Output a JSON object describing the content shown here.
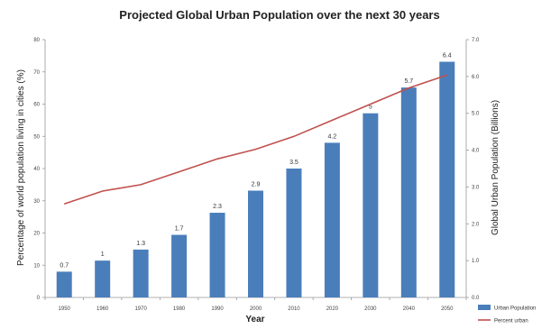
{
  "chart_data": {
    "type": "bar",
    "title": "Projected Global Urban Population over the next 30 years",
    "xlabel": "Year",
    "ylabel_left": "Percentage of world population living in cities (%)",
    "ylabel_right": "Global Urban Population (Billions)",
    "categories": [
      "1950",
      "1960",
      "1970",
      "1980",
      "1990",
      "2000",
      "2010",
      "2020",
      "2030",
      "2040",
      "2050"
    ],
    "ylim_left": [
      0,
      80
    ],
    "ylim_right": [
      0,
      7
    ],
    "y_ticks_left": [
      "0",
      "10",
      "20",
      "30",
      "40",
      "50",
      "60",
      "70",
      "80"
    ],
    "y_ticks_right": [
      "0.0",
      "1.0",
      "2.0",
      "3.0",
      "4.0",
      "5.0",
      "6.0",
      "7.0"
    ],
    "grid": false,
    "legend_position": "bottom-right",
    "series": [
      {
        "name": "Urban Population",
        "type": "bar",
        "axis": "right",
        "color": "#4a7ebb",
        "values": [
          0.7,
          1.0,
          1.3,
          1.7,
          2.3,
          2.9,
          3.5,
          4.2,
          5.0,
          5.7,
          6.4
        ],
        "labels": [
          "0.7",
          "1",
          "1.3",
          "1.7",
          "2.3",
          "2.9",
          "3.5",
          "4.2",
          "5",
          "5.7",
          "6.4"
        ]
      },
      {
        "name": "Percent urban",
        "type": "line",
        "axis": "left",
        "color": "#c0504d",
        "values": [
          29,
          33,
          35,
          39,
          43,
          46,
          50,
          55,
          60,
          65,
          69
        ]
      }
    ]
  }
}
